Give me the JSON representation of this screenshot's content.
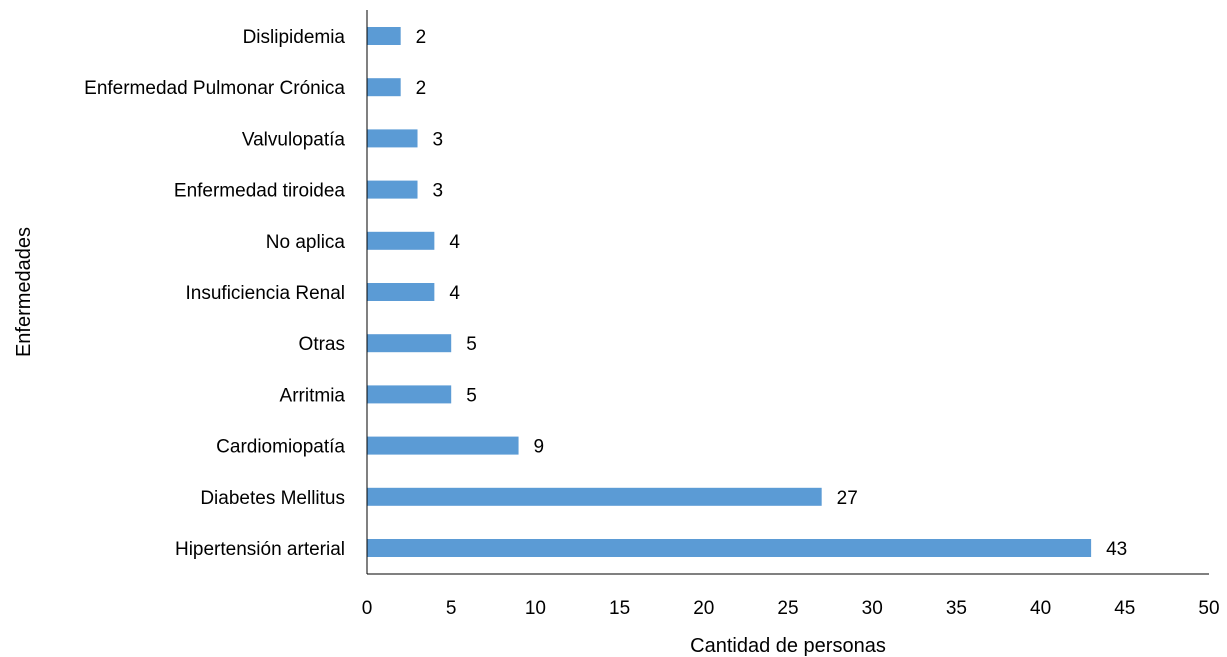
{
  "chart_data": {
    "type": "bar",
    "orientation": "horizontal",
    "title": "",
    "xlabel": "Cantidad de personas",
    "ylabel": "Enfermedades",
    "categories": [
      "Dislipidemia",
      "Enfermedad Pulmonar Crónica",
      "Valvulopatía",
      "Enfermedad tiroidea",
      "No aplica",
      "Insuficiencia Renal",
      "Otras",
      "Arritmia",
      "Cardiomiopatía",
      "Diabetes Mellitus",
      "Hipertensión arterial"
    ],
    "values": [
      2,
      2,
      3,
      3,
      4,
      4,
      5,
      5,
      9,
      27,
      43
    ],
    "xlim": [
      0,
      50
    ],
    "xticks": [
      0,
      5,
      10,
      15,
      20,
      25,
      30,
      35,
      40,
      45,
      50
    ],
    "grid": false,
    "legend": "none",
    "bar_color": "#5B9BD5",
    "data_labels": true
  }
}
